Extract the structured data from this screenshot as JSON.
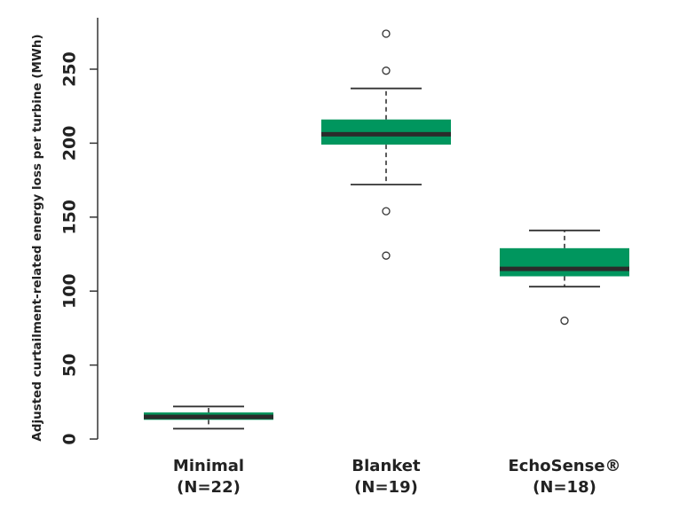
{
  "chart_data": {
    "type": "boxplot",
    "title": "",
    "ylabel": "Adjusted curtailment-related energy loss per turbine (MWh)",
    "xlabel": "",
    "ylim": [
      0,
      280
    ],
    "yticks": [
      0,
      50,
      100,
      150,
      200,
      250
    ],
    "box_color": "#00965E",
    "median_color": "#2b2b2b",
    "categories": [
      {
        "label": "Minimal",
        "n_label": "(N=22)"
      },
      {
        "label": "Blanket",
        "n_label": "(N=19)"
      },
      {
        "label": "EchoSense®",
        "n_label": "(N=18)"
      }
    ],
    "series": [
      {
        "category": "Minimal",
        "whisker_low": 7,
        "q1": 13,
        "median": 15,
        "q3": 18,
        "whisker_high": 22,
        "outliers": []
      },
      {
        "category": "Blanket",
        "whisker_low": 172,
        "q1": 199,
        "median": 206,
        "q3": 216,
        "whisker_high": 237,
        "outliers": [
          274,
          249,
          154,
          124
        ]
      },
      {
        "category": "EchoSense®",
        "whisker_low": 103,
        "q1": 110,
        "median": 115,
        "q3": 129,
        "whisker_high": 141,
        "outliers": [
          80
        ]
      }
    ]
  }
}
